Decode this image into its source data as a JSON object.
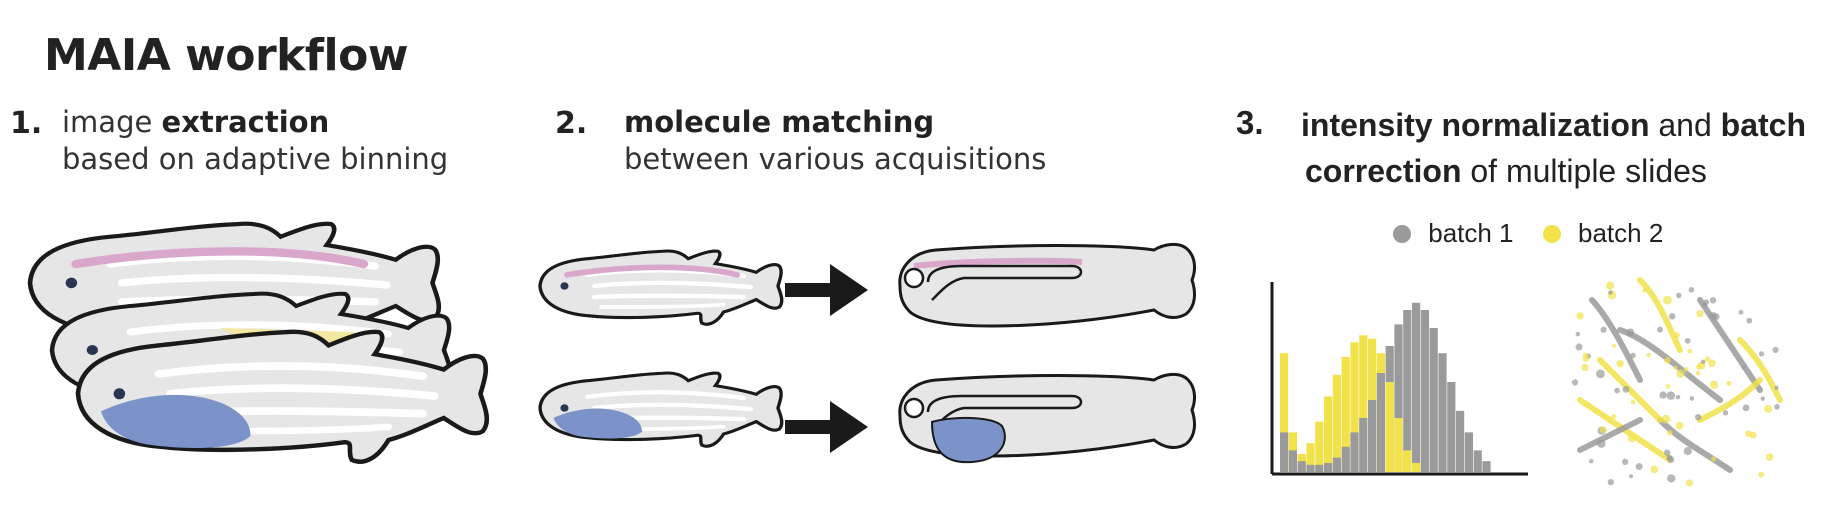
{
  "title": "MAIA workflow",
  "steps": [
    {
      "number": "1.",
      "line1_prefix": "image ",
      "line1_bold": "extraction",
      "line2": "based on adaptive binning"
    },
    {
      "number": "2.",
      "line1_bold": "molecule matching",
      "line2": "between various acquisitions"
    },
    {
      "number": "3.",
      "line1_bold": "intensity normalization",
      "line1_mid": " and ",
      "line1_bold2": "batch",
      "line2_bold": "correction",
      "line2_rest": " of multiple slides"
    }
  ],
  "legend": [
    {
      "label": "batch 1",
      "color": "#9a9a9a"
    },
    {
      "label": "batch 2",
      "color": "#f2e24a"
    }
  ],
  "colors": {
    "pink": "#d9a6cc",
    "yellow": "#f3e7a1",
    "blue": "#7b93c9",
    "fish_body": "#e6e6e6",
    "outline": "#1a1a1a",
    "arrow": "#1a1a1a"
  },
  "icons": [
    "fish-stack-icon",
    "arrow-right-icon",
    "larva-icon",
    "scatter-embedding-icon"
  ]
}
